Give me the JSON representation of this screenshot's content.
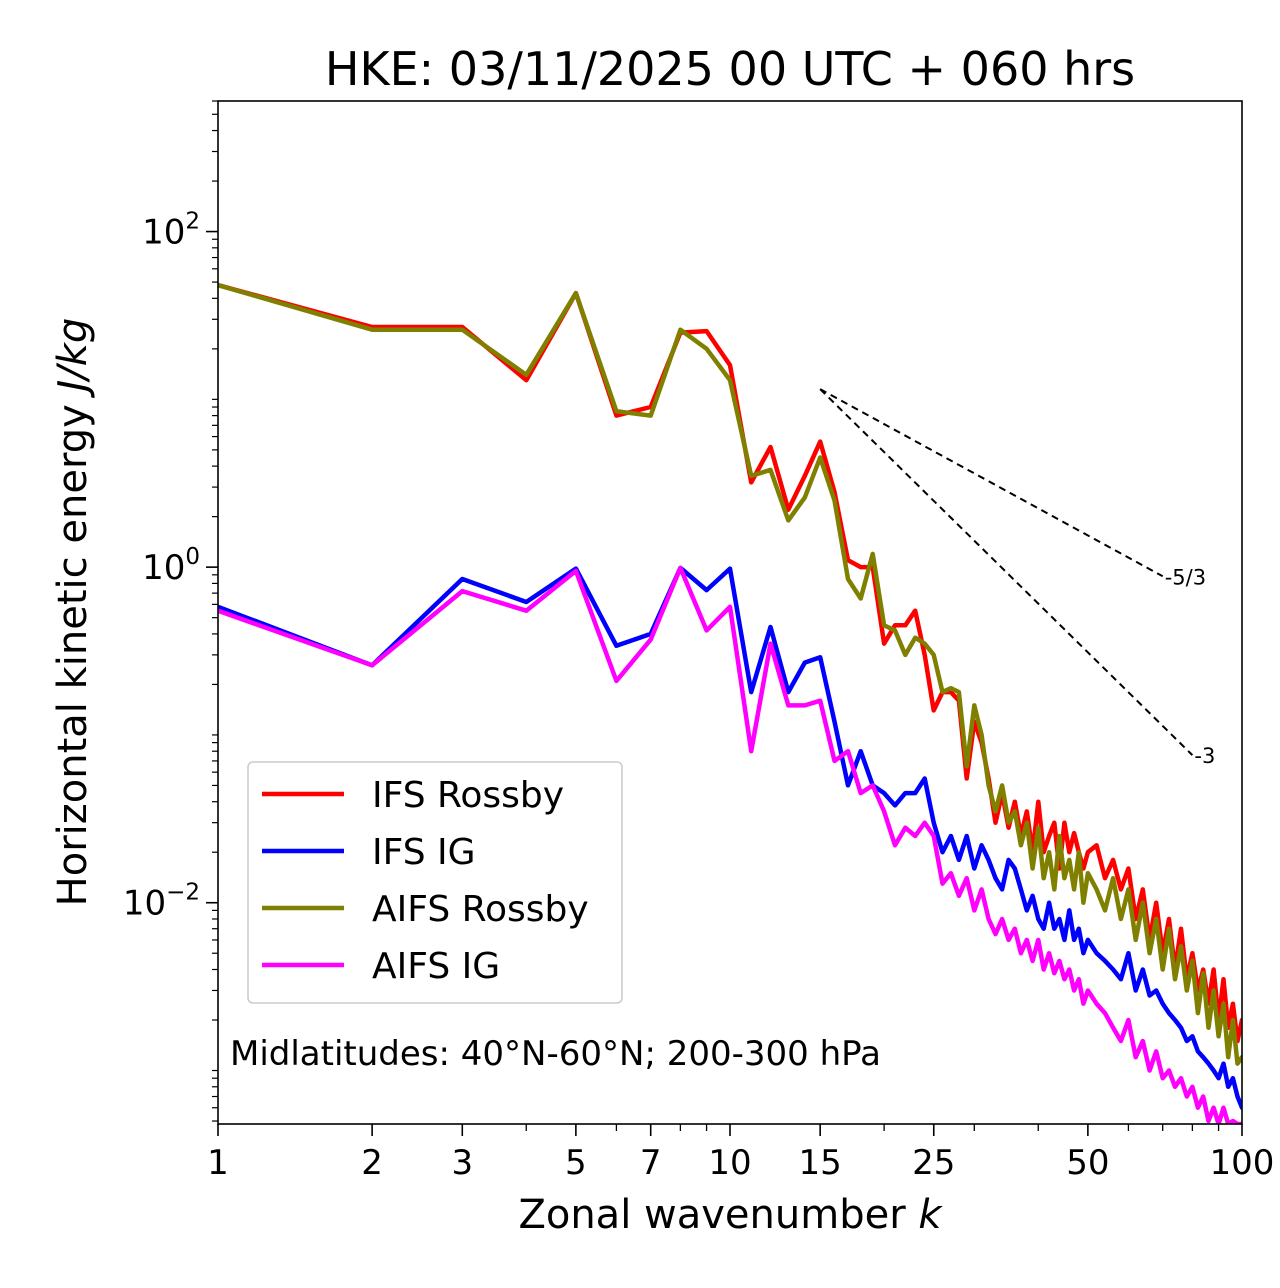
{
  "chart_data": {
    "type": "line",
    "title": "HKE: 03/11/2025 00 UTC + 060 hrs",
    "xlabel": "Zonal wavenumber k",
    "xlabel_main": "Zonal wavenumber ",
    "xlabel_var": "k",
    "ylabel_main": "Horizontal kinetic energy ",
    "ylabel_var": "J/kg",
    "xscale": "log",
    "yscale": "log",
    "xlim": [
      1,
      100
    ],
    "ylim": [
      0.00048,
      600
    ],
    "x_ticks": [
      {
        "value": 1,
        "label": "1"
      },
      {
        "value": 2,
        "label": "2"
      },
      {
        "value": 3,
        "label": "3"
      },
      {
        "value": 5,
        "label": "5"
      },
      {
        "value": 7,
        "label": "7"
      },
      {
        "value": 10,
        "label": "10"
      },
      {
        "value": 15,
        "label": "15"
      },
      {
        "value": 25,
        "label": "25"
      },
      {
        "value": 50,
        "label": "50"
      },
      {
        "value": 100,
        "label": "100"
      }
    ],
    "y_ticks": [
      {
        "value": 0.01,
        "base": "10",
        "exp": "−2"
      },
      {
        "value": 1,
        "base": "10",
        "exp": "0"
      },
      {
        "value": 100,
        "base": "10",
        "exp": "2"
      }
    ],
    "annotation": "Midlatitudes: 40°N-60°N; 200-300 hPa",
    "legend_position": "lower-left",
    "reference_lines": [
      {
        "label": "-5/3",
        "slope": -1.6667,
        "x_start": 15,
        "y_start": 11.5,
        "x_end": 70
      },
      {
        "label": "-3",
        "slope": -3,
        "x_start": 15,
        "y_start": 11.5,
        "x_end": 80
      }
    ],
    "series": [
      {
        "name": "IFS Rossby",
        "color": "#ff0000",
        "x": [
          1,
          2,
          3,
          4,
          5,
          6,
          7,
          8,
          9,
          10,
          11,
          12,
          13,
          14,
          15,
          16,
          17,
          18,
          19,
          20,
          21,
          22,
          23,
          24,
          25,
          26,
          27,
          28,
          29,
          30,
          31,
          32,
          33,
          34,
          35,
          36,
          37,
          38,
          39,
          40,
          41,
          42,
          43,
          44,
          45,
          46,
          47,
          48,
          49,
          50,
          52,
          54,
          56,
          58,
          60,
          62,
          64,
          66,
          68,
          70,
          72,
          74,
          76,
          78,
          80,
          82,
          84,
          86,
          88,
          90,
          92,
          94,
          96,
          98,
          100
        ],
        "values": [
          48,
          27,
          27,
          13,
          43,
          8,
          9,
          25,
          25.5,
          16,
          3.2,
          5.2,
          2.2,
          3.5,
          5.6,
          2.8,
          1.1,
          1.0,
          1.0,
          0.35,
          0.45,
          0.45,
          0.55,
          0.3,
          0.14,
          0.18,
          0.18,
          0.16,
          0.055,
          0.12,
          0.09,
          0.055,
          0.03,
          0.045,
          0.028,
          0.04,
          0.025,
          0.035,
          0.02,
          0.04,
          0.02,
          0.025,
          0.03,
          0.016,
          0.03,
          0.02,
          0.026,
          0.02,
          0.016,
          0.02,
          0.022,
          0.014,
          0.018,
          0.012,
          0.016,
          0.008,
          0.012,
          0.006,
          0.01,
          0.005,
          0.008,
          0.004,
          0.007,
          0.0035,
          0.005,
          0.003,
          0.004,
          0.0025,
          0.004,
          0.002,
          0.0035,
          0.0018,
          0.0025,
          0.0015,
          0.002
        ]
      },
      {
        "name": "IFS IG",
        "color": "#0000ff",
        "x": [
          1,
          2,
          3,
          4,
          5,
          6,
          7,
          8,
          9,
          10,
          11,
          12,
          13,
          14,
          15,
          16,
          17,
          18,
          19,
          20,
          21,
          22,
          23,
          24,
          25,
          26,
          27,
          28,
          29,
          30,
          31,
          32,
          33,
          34,
          35,
          36,
          37,
          38,
          39,
          40,
          41,
          42,
          43,
          44,
          45,
          46,
          47,
          48,
          49,
          50,
          52,
          54,
          56,
          58,
          60,
          62,
          64,
          66,
          68,
          70,
          72,
          74,
          76,
          78,
          80,
          82,
          84,
          86,
          88,
          90,
          92,
          94,
          96,
          98,
          100
        ],
        "values": [
          0.58,
          0.26,
          0.85,
          0.62,
          0.98,
          0.34,
          0.4,
          0.99,
          0.73,
          0.98,
          0.18,
          0.44,
          0.18,
          0.27,
          0.29,
          0.12,
          0.05,
          0.08,
          0.05,
          0.045,
          0.038,
          0.045,
          0.045,
          0.055,
          0.03,
          0.02,
          0.025,
          0.018,
          0.025,
          0.016,
          0.022,
          0.018,
          0.014,
          0.012,
          0.018,
          0.016,
          0.012,
          0.009,
          0.011,
          0.008,
          0.007,
          0.01,
          0.007,
          0.008,
          0.006,
          0.009,
          0.006,
          0.007,
          0.005,
          0.006,
          0.005,
          0.0045,
          0.004,
          0.0035,
          0.005,
          0.003,
          0.004,
          0.0028,
          0.003,
          0.0025,
          0.0022,
          0.002,
          0.0018,
          0.0015,
          0.0016,
          0.0013,
          0.0012,
          0.0011,
          0.001,
          0.0009,
          0.0011,
          0.0008,
          0.0009,
          0.0007,
          0.0006
        ]
      },
      {
        "name": "AIFS Rossby",
        "color": "#808000",
        "x": [
          1,
          2,
          3,
          4,
          5,
          6,
          7,
          8,
          9,
          10,
          11,
          12,
          13,
          14,
          15,
          16,
          17,
          18,
          19,
          20,
          21,
          22,
          23,
          24,
          25,
          26,
          27,
          28,
          29,
          30,
          31,
          32,
          33,
          34,
          35,
          36,
          37,
          38,
          39,
          40,
          41,
          42,
          43,
          44,
          45,
          46,
          47,
          48,
          49,
          50,
          52,
          54,
          56,
          58,
          60,
          62,
          64,
          66,
          68,
          70,
          72,
          74,
          76,
          78,
          80,
          82,
          84,
          86,
          88,
          90,
          92,
          94,
          96,
          98,
          100
        ],
        "values": [
          48,
          26,
          26,
          14,
          43,
          8.5,
          8,
          26,
          20,
          13,
          3.5,
          3.8,
          1.9,
          2.6,
          4.5,
          2.5,
          0.85,
          0.65,
          1.2,
          0.45,
          0.42,
          0.3,
          0.38,
          0.35,
          0.3,
          0.18,
          0.19,
          0.18,
          0.065,
          0.15,
          0.1,
          0.05,
          0.035,
          0.05,
          0.03,
          0.035,
          0.022,
          0.03,
          0.016,
          0.028,
          0.014,
          0.02,
          0.012,
          0.025,
          0.014,
          0.018,
          0.012,
          0.02,
          0.01,
          0.015,
          0.012,
          0.009,
          0.014,
          0.008,
          0.012,
          0.006,
          0.01,
          0.005,
          0.008,
          0.004,
          0.007,
          0.0035,
          0.0055,
          0.003,
          0.0045,
          0.0022,
          0.0038,
          0.0018,
          0.003,
          0.0016,
          0.0025,
          0.0012,
          0.002,
          0.0011,
          0.0012
        ]
      },
      {
        "name": "AIFS IG",
        "color": "#ff00ff",
        "x": [
          1,
          2,
          3,
          4,
          5,
          6,
          7,
          8,
          9,
          10,
          11,
          12,
          13,
          14,
          15,
          16,
          17,
          18,
          19,
          20,
          21,
          22,
          23,
          24,
          25,
          26,
          27,
          28,
          29,
          30,
          31,
          32,
          33,
          34,
          35,
          36,
          37,
          38,
          39,
          40,
          41,
          42,
          43,
          44,
          45,
          46,
          47,
          48,
          49,
          50,
          52,
          54,
          56,
          58,
          60,
          62,
          64,
          66,
          68,
          70,
          72,
          74,
          76,
          78,
          80,
          82,
          84,
          86,
          88,
          90,
          92,
          94,
          96,
          98,
          100
        ],
        "values": [
          0.55,
          0.26,
          0.72,
          0.55,
          0.95,
          0.21,
          0.37,
          0.99,
          0.42,
          0.58,
          0.08,
          0.35,
          0.15,
          0.15,
          0.16,
          0.07,
          0.08,
          0.045,
          0.05,
          0.035,
          0.022,
          0.028,
          0.025,
          0.03,
          0.025,
          0.013,
          0.015,
          0.011,
          0.014,
          0.009,
          0.012,
          0.008,
          0.0065,
          0.008,
          0.006,
          0.007,
          0.005,
          0.006,
          0.0045,
          0.006,
          0.004,
          0.005,
          0.0038,
          0.0045,
          0.0035,
          0.004,
          0.003,
          0.0035,
          0.0025,
          0.003,
          0.0025,
          0.0022,
          0.0018,
          0.0015,
          0.002,
          0.0012,
          0.0015,
          0.001,
          0.0013,
          0.0009,
          0.001,
          0.0008,
          0.0009,
          0.0007,
          0.0008,
          0.0006,
          0.0007,
          0.0005,
          0.0006,
          0.00048,
          0.0006,
          0.00048,
          0.0005,
          0.00048,
          0.00048
        ]
      }
    ]
  }
}
